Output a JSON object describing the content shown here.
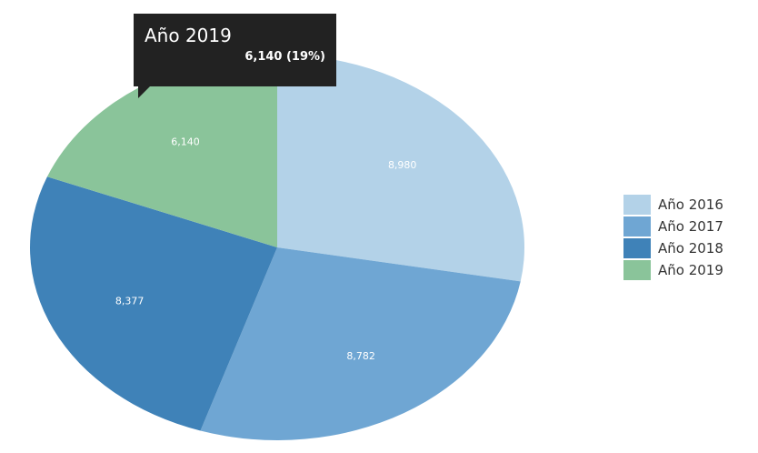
{
  "chart_data": {
    "type": "pie",
    "categories": [
      "Año 2016",
      "Año 2017",
      "Año 2018",
      "Año 2019"
    ],
    "values": [
      8980,
      8782,
      8377,
      6140
    ],
    "data_labels": [
      "8,980",
      "8,782",
      "8,377",
      "6,140"
    ],
    "colors": [
      "#b3d2e8",
      "#6fa6d3",
      "#3f82b8",
      "#8ac49a"
    ],
    "legend_position": "right",
    "start_angle_deg": 0,
    "tooltip": {
      "title": "Año 2019",
      "value": "6,140 (19%)"
    }
  }
}
